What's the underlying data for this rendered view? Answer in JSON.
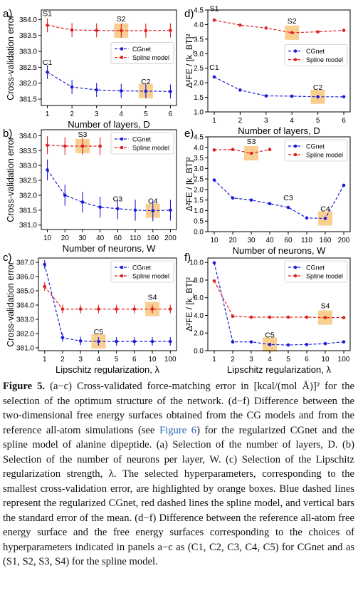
{
  "figure": {
    "caption_label": "Figure 5.",
    "caption_part1": " (a−c) Cross-validated force-matching error in [kcal/(mol Å)]² for the selection of the optimum structure of the network. (d−f) Difference between the two-dimensional free energy surfaces obtained from the CG models and from the reference all-atom simulations (see ",
    "caption_link": "Figure 6",
    "caption_part2": ") for the regularized CGnet and the spline model of alanine dipeptide. (a) Selection of the number of layers, D. (b) Selection of the number of neurons per layer, W. (c) Selection of the Lipschitz regularization strength, λ. The selected hyperparameters, corresponding to the smallest cross-validation error, are highlighted by orange boxes. Blue dashed lines represent the regularized CGnet, red dashed lines the spline model, and vertical bars the standard error of the mean. (d−f) Difference between the reference all-atom free energy surface and the free energy surfaces corresponding to the choices of hyperparameters indicated in panels a−c as (C1, C2, C3, C4, C5) for CGnet and as (S1, S2, S3, S4) for the spline model."
  },
  "colors": {
    "cgnet": "#1a1adb",
    "spline": "#e01f1f",
    "highlight": "#f8c77e",
    "axis": "#000000"
  },
  "chart_data": [
    {
      "panel": "a)",
      "type": "line",
      "categories": [
        "1",
        "2",
        "3",
        "4",
        "5",
        "6"
      ],
      "xlabel": "Number of layers, D",
      "ylabel": "Cross-validation error",
      "ylim": [
        381.3,
        384.3
      ],
      "yticks": [
        381.5,
        382.0,
        382.5,
        383.0,
        383.5,
        384.0
      ],
      "ytick_labels": [
        "381.5",
        "382.0",
        "382.5",
        "383.0",
        "383.5",
        "384.0"
      ],
      "legend": "center-right",
      "series": [
        {
          "name": "CGnet",
          "color": "#1a1adb",
          "values": [
            382.35,
            381.88,
            381.79,
            381.76,
            381.75,
            381.74
          ],
          "errors": [
            0.22,
            0.22,
            0.22,
            0.22,
            0.22,
            0.22
          ]
        },
        {
          "name": "Spline model",
          "color": "#e01f1f",
          "values": [
            383.82,
            383.67,
            383.66,
            383.65,
            383.65,
            383.66
          ],
          "errors": [
            0.22,
            0.22,
            0.22,
            0.22,
            0.22,
            0.22
          ]
        }
      ],
      "annotations": [
        {
          "text": "C1",
          "series": 0,
          "index": 0
        },
        {
          "text": "C2",
          "series": 0,
          "index": 4
        },
        {
          "text": "S1",
          "series": 1,
          "index": 0
        },
        {
          "text": "S2",
          "series": 1,
          "index": 3
        }
      ],
      "highlights": [
        {
          "series": 0,
          "index": 4
        },
        {
          "series": 1,
          "index": 3
        }
      ]
    },
    {
      "panel": "d)",
      "type": "line",
      "categories": [
        "1",
        "2",
        "3",
        "4",
        "5",
        "6"
      ],
      "xlabel": "Number of layers, D",
      "ylabel": "Δ²FE / [k_BT]²",
      "ylim": [
        1.0,
        4.5
      ],
      "yticks": [
        1.0,
        1.5,
        2.0,
        2.5,
        3.0,
        3.5,
        4.0,
        4.5
      ],
      "ytick_labels": [
        "1.0",
        "1.5",
        "2.0",
        "2.5",
        "3.0",
        "3.5",
        "4.0",
        "4.5"
      ],
      "legend": "center-right",
      "series": [
        {
          "name": "CGnet",
          "color": "#1a1adb",
          "values": [
            2.2,
            1.75,
            1.55,
            1.54,
            1.52,
            1.52
          ]
        },
        {
          "name": "Spline model",
          "color": "#e01f1f",
          "values": [
            4.15,
            3.98,
            3.88,
            3.72,
            3.75,
            3.8
          ]
        }
      ],
      "annotations": [
        {
          "text": "C1",
          "series": 0,
          "index": 0
        },
        {
          "text": "C2",
          "series": 0,
          "index": 4
        },
        {
          "text": "S1",
          "series": 1,
          "index": 0
        },
        {
          "text": "S2",
          "series": 1,
          "index": 3
        }
      ],
      "highlights": [
        {
          "series": 0,
          "index": 4
        },
        {
          "series": 1,
          "index": 3
        }
      ]
    },
    {
      "panel": "b)",
      "type": "line",
      "categories": [
        "10",
        "20",
        "30",
        "40",
        "60",
        "110",
        "160",
        "200"
      ],
      "xlabel": "Number of neurons, W",
      "ylabel": "Cross-validation error",
      "ylim": [
        380.85,
        384.2
      ],
      "yticks": [
        381.0,
        381.5,
        382.0,
        382.5,
        383.0,
        383.5,
        384.0
      ],
      "ytick_labels": [
        "381.0",
        "381.5",
        "382.0",
        "382.5",
        "383.0",
        "383.5",
        "384.0"
      ],
      "legend": "top-right",
      "series": [
        {
          "name": "CGnet",
          "color": "#1a1adb",
          "values": [
            382.85,
            382.0,
            381.77,
            381.6,
            381.55,
            381.5,
            381.48,
            381.5
          ],
          "errors": [
            0.35,
            0.35,
            0.35,
            0.35,
            0.35,
            0.35,
            0.35,
            0.35
          ]
        },
        {
          "name": "Spline model",
          "color": "#e01f1f",
          "values": [
            383.68,
            383.65,
            383.65,
            383.65,
            null,
            null,
            null,
            null
          ],
          "errors": [
            0.3,
            0.3,
            0.3,
            0.3,
            0,
            0,
            0,
            0
          ]
        }
      ],
      "annotations": [
        {
          "text": "C3",
          "series": 0,
          "index": 4
        },
        {
          "text": "C4",
          "series": 0,
          "index": 6
        },
        {
          "text": "S3",
          "series": 1,
          "index": 2
        }
      ],
      "highlights": [
        {
          "series": 0,
          "index": 6
        },
        {
          "series": 1,
          "index": 2
        }
      ]
    },
    {
      "panel": "e)",
      "type": "line",
      "categories": [
        "10",
        "20",
        "30",
        "40",
        "60",
        "110",
        "160",
        "200"
      ],
      "xlabel": "Number of neurons, W",
      "ylabel": "Δ²FE / [k_BT]²",
      "ylim": [
        0.0,
        4.5
      ],
      "yticks": [
        0.0,
        0.5,
        1.0,
        1.5,
        2.0,
        2.5,
        3.0,
        3.5,
        4.0,
        4.5
      ],
      "ytick_labels": [
        "0.0",
        "0.5",
        "1.0",
        "1.5",
        "2.0",
        "2.5",
        "3.0",
        "3.5",
        "4.0",
        "4.5"
      ],
      "legend": "top-right",
      "series": [
        {
          "name": "CGnet",
          "color": "#1a1adb",
          "values": [
            2.45,
            1.6,
            1.5,
            1.33,
            1.15,
            0.65,
            0.63,
            2.2
          ]
        },
        {
          "name": "Spline model",
          "color": "#e01f1f",
          "values": [
            3.88,
            3.9,
            3.72,
            3.9,
            null,
            null,
            null,
            null
          ]
        }
      ],
      "annotations": [
        {
          "text": "C3",
          "series": 0,
          "index": 4
        },
        {
          "text": "C4",
          "series": 0,
          "index": 6
        },
        {
          "text": "S3",
          "series": 1,
          "index": 2
        }
      ],
      "highlights": [
        {
          "series": 0,
          "index": 6
        },
        {
          "series": 1,
          "index": 2
        }
      ]
    },
    {
      "panel": "c)",
      "type": "line",
      "categories": [
        "1",
        "2",
        "3",
        "4",
        "5",
        "6",
        "10",
        "100"
      ],
      "xlabel": "Lipschitz regularization, λ",
      "ylabel": "Cross-validation error",
      "ylim": [
        380.8,
        387.3
      ],
      "yticks": [
        381.0,
        382.0,
        383.0,
        384.0,
        385.0,
        386.0,
        387.0
      ],
      "ytick_labels": [
        "381.0",
        "382.0",
        "383.0",
        "384.0",
        "385.0",
        "386.0",
        "387.0"
      ],
      "legend": "top-right",
      "series": [
        {
          "name": "CGnet",
          "color": "#1a1adb",
          "values": [
            386.85,
            381.72,
            381.48,
            381.45,
            381.45,
            381.45,
            381.45,
            381.45
          ],
          "errors": [
            0.3,
            0.3,
            0.3,
            0.3,
            0.3,
            0.3,
            0.3,
            0.3
          ]
        },
        {
          "name": "Spline model",
          "color": "#e01f1f",
          "values": [
            385.3,
            383.72,
            383.72,
            383.72,
            383.72,
            383.72,
            383.72,
            383.72
          ],
          "errors": [
            0.3,
            0.3,
            0.3,
            0.3,
            0.3,
            0.3,
            0.3,
            0.3
          ]
        }
      ],
      "annotations": [
        {
          "text": "C5",
          "series": 0,
          "index": 3
        },
        {
          "text": "S4",
          "series": 1,
          "index": 6
        }
      ],
      "highlights": [
        {
          "series": 0,
          "index": 3
        },
        {
          "series": 1,
          "index": 6
        }
      ]
    },
    {
      "panel": "f)",
      "type": "line",
      "categories": [
        "1",
        "2",
        "3",
        "4",
        "5",
        "6",
        "10",
        "100"
      ],
      "xlabel": "Lipschitz regularization, λ",
      "ylabel": "Δ²FE / [k_BT]²",
      "ylim": [
        0.0,
        10.5
      ],
      "yticks": [
        0.0,
        2.0,
        4.0,
        6.0,
        8.0,
        10.0
      ],
      "ytick_labels": [
        "0.0",
        "2.0",
        "4.0",
        "6.0",
        "8.0",
        "10.0"
      ],
      "legend": "top-right",
      "series": [
        {
          "name": "CGnet",
          "color": "#1a1adb",
          "values": [
            9.95,
            1.0,
            1.0,
            0.7,
            0.65,
            0.7,
            0.8,
            1.0
          ]
        },
        {
          "name": "Spline model",
          "color": "#e01f1f",
          "values": [
            7.9,
            3.9,
            3.8,
            3.8,
            3.8,
            3.8,
            3.75,
            3.75
          ]
        }
      ],
      "annotations": [
        {
          "text": "C5",
          "series": 0,
          "index": 3
        },
        {
          "text": "S4",
          "series": 1,
          "index": 6
        }
      ],
      "highlights": [
        {
          "series": 0,
          "index": 3
        },
        {
          "series": 1,
          "index": 6
        }
      ]
    }
  ]
}
